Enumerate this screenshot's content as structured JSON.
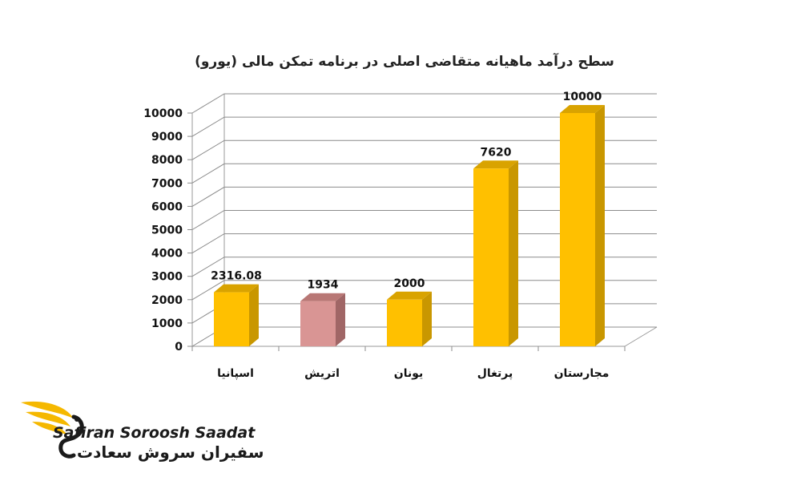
{
  "chart_data": {
    "type": "bar",
    "title": "سطح درآمد ماهیانه متقاضی اصلی در برنامه تمکن مالی (یورو)",
    "categories": [
      "اسپانیا",
      "اتریش",
      "یونان",
      "پرتغال",
      "مجارستان"
    ],
    "values": [
      2316.08,
      1934,
      2000,
      7620,
      10000
    ],
    "value_labels": [
      "2316.08",
      "1934",
      "2000",
      "7620",
      "10000"
    ],
    "bar_colors": [
      "#ffc000",
      "#d99594",
      "#ffc000",
      "#ffc000",
      "#ffc000"
    ],
    "side_colors": [
      "#c99700",
      "#a06666",
      "#c99700",
      "#c99700",
      "#c99700"
    ],
    "top_colors": [
      "#d9a300",
      "#b87775",
      "#d9a300",
      "#d9a300",
      "#d9a300"
    ],
    "ylim": [
      0,
      10000
    ],
    "yticks": [
      0,
      1000,
      2000,
      3000,
      4000,
      5000,
      6000,
      7000,
      8000,
      9000,
      10000
    ],
    "grid": true,
    "legend": "none"
  },
  "brand": {
    "name_en": "Safiran Soroosh Saadat",
    "name_fa": "سفیران سروش سعادت",
    "accent": "#f5b800"
  }
}
